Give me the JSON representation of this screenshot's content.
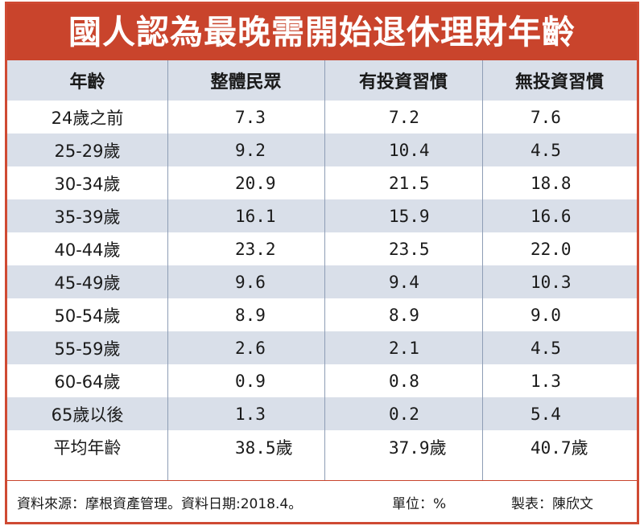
{
  "title": "國人認為最晚需開始退休理財年齡",
  "columns": [
    "年齡",
    "整體民眾",
    "有投資習慣",
    "無投資習慣"
  ],
  "rows": [
    [
      "24歲之前",
      "7.3",
      "7.2",
      "7.6"
    ],
    [
      "25-29歲",
      "9.2",
      "10.4",
      "4.5"
    ],
    [
      "30-34歲",
      "20.9",
      "21.5",
      "18.8"
    ],
    [
      "35-39歲",
      "16.1",
      "15.9",
      "16.6"
    ],
    [
      "40-44歲",
      "23.2",
      "23.5",
      "22.0"
    ],
    [
      "45-49歲",
      "9.6",
      "9.4",
      "10.3"
    ],
    [
      "50-54歲",
      "8.9",
      "8.9",
      "9.0"
    ],
    [
      "55-59歲",
      "2.6",
      "2.1",
      "4.5"
    ],
    [
      "60-64歲",
      "0.9",
      "0.8",
      "1.3"
    ],
    [
      "65歲以後",
      "1.3",
      "0.2",
      "5.4"
    ],
    [
      "平均年齡",
      "38.5歲",
      "37.9歲",
      "40.7歲"
    ]
  ],
  "footer": {
    "source": "資料來源：摩根資產管理。資料日期:2018.4。",
    "unit": "單位：%",
    "maker": "製表：陳欣文"
  },
  "colors": {
    "title_bar": "#c9442c",
    "row_shade": "#d9dfe9",
    "border": "#cf4a33"
  }
}
